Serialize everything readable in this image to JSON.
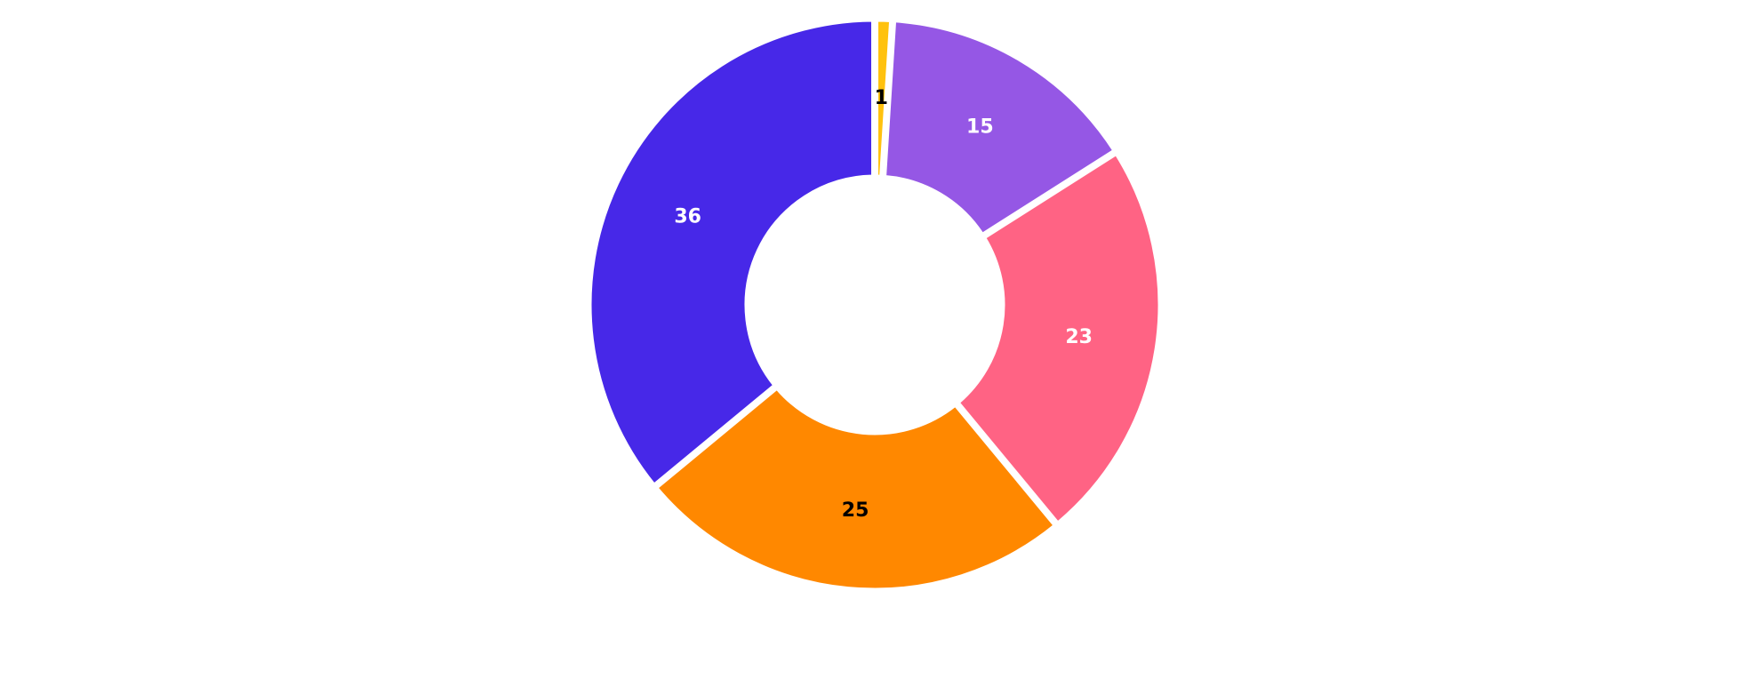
{
  "chart_data": {
    "type": "pie",
    "variant": "donut",
    "title": "",
    "legend": "none",
    "start_angle_deg": 0,
    "direction": "clockwise",
    "slices": [
      {
        "value": 1,
        "color": "#FFC20E",
        "label_color": "#000000"
      },
      {
        "value": 15,
        "color": "#9557E5",
        "label_color": "#ffffff"
      },
      {
        "value": 23,
        "color": "#FF6384",
        "label_color": "#ffffff"
      },
      {
        "value": 25,
        "color": "#FF8800",
        "label_color": "#000000"
      },
      {
        "value": 36,
        "color": "#4728E8",
        "label_color": "#ffffff"
      }
    ]
  }
}
